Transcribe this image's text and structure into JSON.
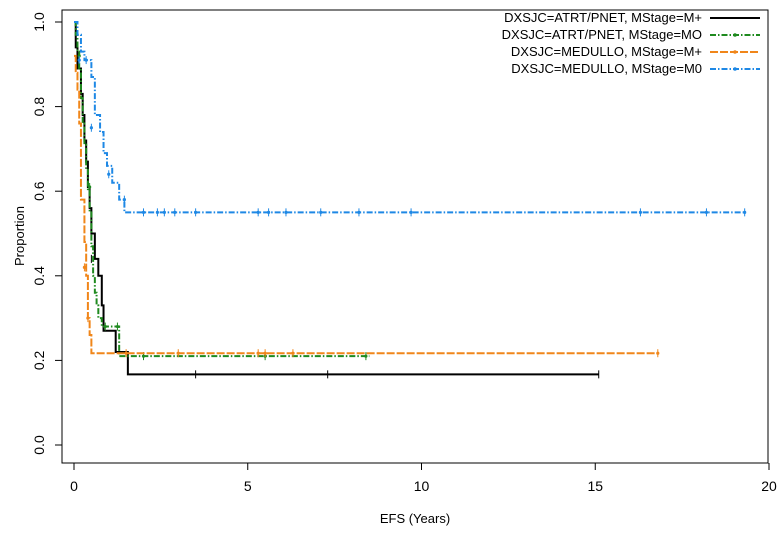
{
  "chart_data": {
    "type": "line",
    "title": "",
    "xlabel": "EFS (Years)",
    "ylabel": "Proportion",
    "xlim": [
      0,
      20
    ],
    "ylim": [
      0,
      1
    ],
    "x_ticks": [
      "0",
      "5",
      "10",
      "15",
      "20"
    ],
    "y_ticks": [
      "0.0",
      "0.2",
      "0.4",
      "0.6",
      "0.8",
      "1.0"
    ],
    "grid": false,
    "legend_position": "top-right",
    "series": [
      {
        "name": "DXSJC=ATRT/PNET, MStage=M+",
        "color": "#000000",
        "dash": "solid",
        "steps": [
          [
            0,
            1.0
          ],
          [
            0.05,
            0.94
          ],
          [
            0.1,
            0.89
          ],
          [
            0.2,
            0.83
          ],
          [
            0.25,
            0.78
          ],
          [
            0.3,
            0.72
          ],
          [
            0.35,
            0.67
          ],
          [
            0.4,
            0.61
          ],
          [
            0.45,
            0.56
          ],
          [
            0.5,
            0.5
          ],
          [
            0.6,
            0.44
          ],
          [
            0.7,
            0.4
          ],
          [
            0.8,
            0.33
          ],
          [
            0.85,
            0.27
          ],
          [
            1.2,
            0.22
          ],
          [
            1.55,
            0.167
          ],
          [
            15.1,
            0.167
          ]
        ],
        "censored": [
          [
            0.5,
            0.44
          ],
          [
            3.5,
            0.167
          ],
          [
            7.3,
            0.167
          ],
          [
            15.1,
            0.167
          ]
        ]
      },
      {
        "name": "DXSJC=ATRT/PNET, MStage=MO",
        "color": "#1f8a1f",
        "dash": "dashdot",
        "steps": [
          [
            0,
            1.0
          ],
          [
            0.05,
            0.97
          ],
          [
            0.1,
            0.93
          ],
          [
            0.15,
            0.89
          ],
          [
            0.2,
            0.82
          ],
          [
            0.25,
            0.76
          ],
          [
            0.3,
            0.71
          ],
          [
            0.35,
            0.65
          ],
          [
            0.4,
            0.6
          ],
          [
            0.45,
            0.55
          ],
          [
            0.5,
            0.47
          ],
          [
            0.55,
            0.4
          ],
          [
            0.6,
            0.36
          ],
          [
            0.65,
            0.33
          ],
          [
            0.7,
            0.3
          ],
          [
            0.8,
            0.28
          ],
          [
            1.3,
            0.21
          ],
          [
            8.5,
            0.21
          ]
        ],
        "censored": [
          [
            0.15,
            0.92
          ],
          [
            0.45,
            0.61
          ],
          [
            0.9,
            0.28
          ],
          [
            1.25,
            0.28
          ],
          [
            2.0,
            0.21
          ],
          [
            5.5,
            0.21
          ],
          [
            8.4,
            0.21
          ]
        ]
      },
      {
        "name": "DXSJC=MEDULLO, MStage=M+",
        "color": "#f0861a",
        "dash": "longdash",
        "steps": [
          [
            0,
            0.92
          ],
          [
            0.05,
            0.88
          ],
          [
            0.1,
            0.84
          ],
          [
            0.15,
            0.76
          ],
          [
            0.2,
            0.58
          ],
          [
            0.3,
            0.48
          ],
          [
            0.35,
            0.4
          ],
          [
            0.4,
            0.3
          ],
          [
            0.45,
            0.26
          ],
          [
            0.5,
            0.217
          ],
          [
            16.8,
            0.217
          ]
        ],
        "censored": [
          [
            0.3,
            0.42
          ],
          [
            0.4,
            0.3
          ],
          [
            1.5,
            0.217
          ],
          [
            3.0,
            0.217
          ],
          [
            5.3,
            0.217
          ],
          [
            5.5,
            0.217
          ],
          [
            6.3,
            0.217
          ],
          [
            16.8,
            0.217
          ]
        ]
      },
      {
        "name": "DXSJC=MEDULLO, MStage=M0",
        "color": "#1e88e5",
        "dash": "dashdot",
        "steps": [
          [
            0,
            1.0
          ],
          [
            0.1,
            0.97
          ],
          [
            0.2,
            0.93
          ],
          [
            0.3,
            0.91
          ],
          [
            0.5,
            0.87
          ],
          [
            0.6,
            0.78
          ],
          [
            0.75,
            0.74
          ],
          [
            0.85,
            0.69
          ],
          [
            0.95,
            0.66
          ],
          [
            1.1,
            0.62
          ],
          [
            1.3,
            0.58
          ],
          [
            1.45,
            0.55
          ],
          [
            19.3,
            0.55
          ]
        ],
        "censored": [
          [
            0.15,
            0.91
          ],
          [
            0.35,
            0.91
          ],
          [
            0.5,
            0.75
          ],
          [
            1.0,
            0.64
          ],
          [
            1.45,
            0.58
          ],
          [
            2.0,
            0.55
          ],
          [
            2.4,
            0.55
          ],
          [
            2.6,
            0.55
          ],
          [
            2.9,
            0.55
          ],
          [
            3.5,
            0.55
          ],
          [
            5.3,
            0.55
          ],
          [
            5.6,
            0.55
          ],
          [
            6.1,
            0.55
          ],
          [
            7.1,
            0.55
          ],
          [
            8.2,
            0.55
          ],
          [
            9.7,
            0.55
          ],
          [
            16.3,
            0.55
          ],
          [
            18.2,
            0.55
          ],
          [
            19.3,
            0.55
          ]
        ]
      }
    ]
  }
}
